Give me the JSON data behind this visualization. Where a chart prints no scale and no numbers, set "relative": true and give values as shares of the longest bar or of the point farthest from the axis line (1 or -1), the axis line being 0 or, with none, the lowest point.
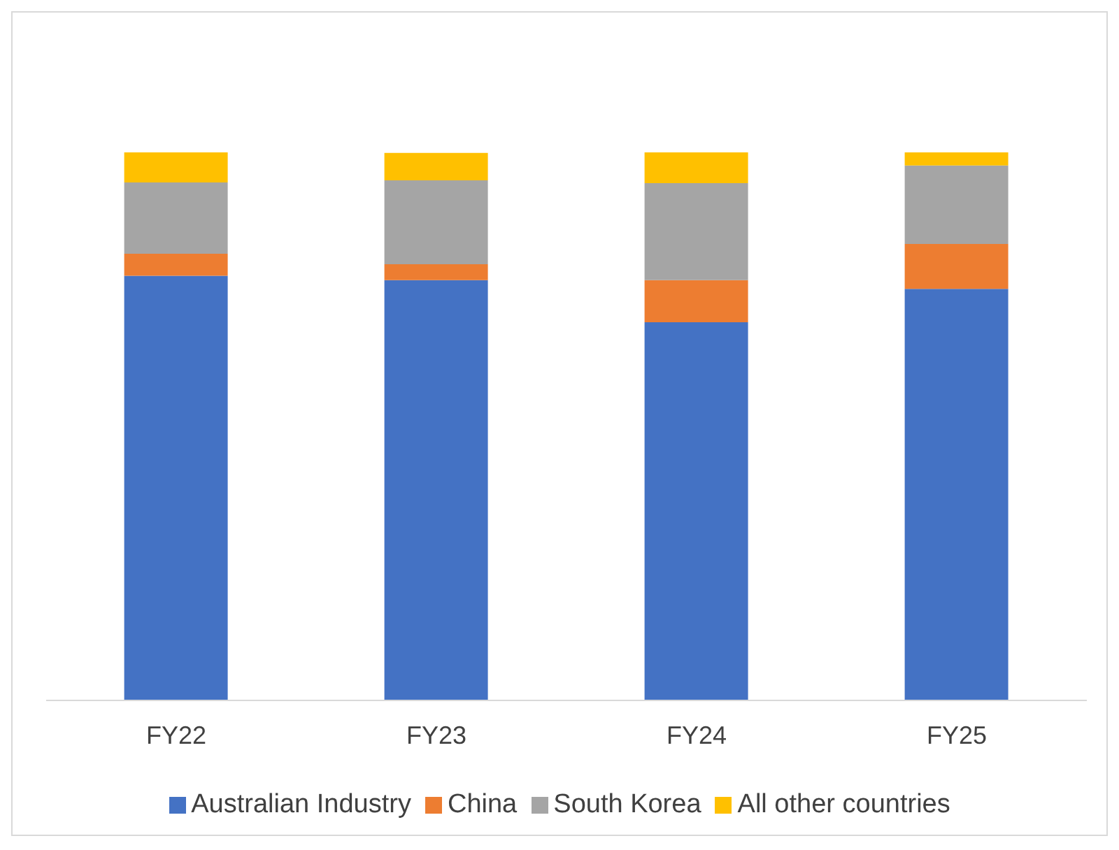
{
  "chart_data": {
    "type": "bar",
    "stacked": true,
    "relative": true,
    "categories": [
      "FY22",
      "FY23",
      "FY24",
      "FY25"
    ],
    "series": [
      {
        "name": "Australian Industry",
        "color": "#4472c4",
        "values": [
          0.775,
          0.767,
          0.69,
          0.751
        ]
      },
      {
        "name": "China",
        "color": "#ed7d31",
        "values": [
          0.04,
          0.029,
          0.077,
          0.082
        ]
      },
      {
        "name": "South Korea",
        "color": "#a5a5a5",
        "values": [
          0.13,
          0.153,
          0.177,
          0.143
        ]
      },
      {
        "name": "All other countries",
        "color": "#ffc000",
        "values": [
          0.055,
          0.05,
          0.056,
          0.024
        ]
      }
    ],
    "grid": false,
    "legend": "bottom"
  }
}
